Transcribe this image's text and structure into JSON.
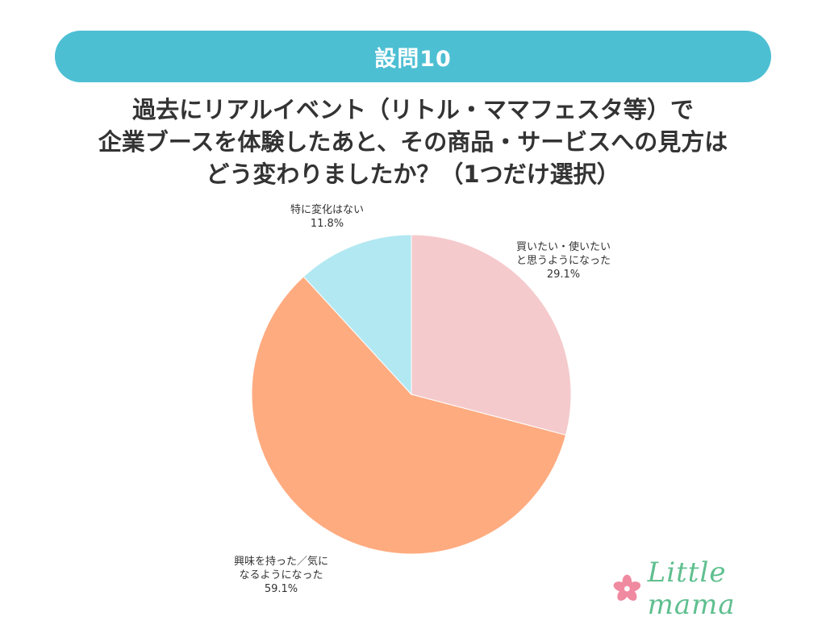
{
  "banner": {
    "label": "設問10"
  },
  "question": {
    "lines": [
      "過去にリアルイベント（リトル・ママフェスタ等）で",
      "企業ブースを体験したあと、その商品・サービスへの見方は",
      "どう変わりましたか？（1つだけ選択）"
    ]
  },
  "chart_data": {
    "type": "pie",
    "start_angle_deg": 0,
    "direction": "clockwise",
    "slices": [
      {
        "label_lines": [
          "買いたい・使いたい",
          "と思うようになった"
        ],
        "value": 29.1,
        "display": "29.1%",
        "color": "#f5cacc"
      },
      {
        "label_lines": [
          "興味を持った／気に",
          "なるようになった"
        ],
        "value": 59.1,
        "display": "59.1%",
        "color": "#ffab80"
      },
      {
        "label_lines": [
          "特に変化はない"
        ],
        "value": 11.8,
        "display": "11.8%",
        "color": "#b2e8f2"
      }
    ]
  },
  "logo": {
    "text": "Little mama",
    "colors": {
      "text": "#5fbf8f",
      "flower": "#f08aa0"
    }
  },
  "colors": {
    "banner": "#4dbfd3",
    "banner_text": "#ffffff",
    "question_text": "#333333"
  }
}
